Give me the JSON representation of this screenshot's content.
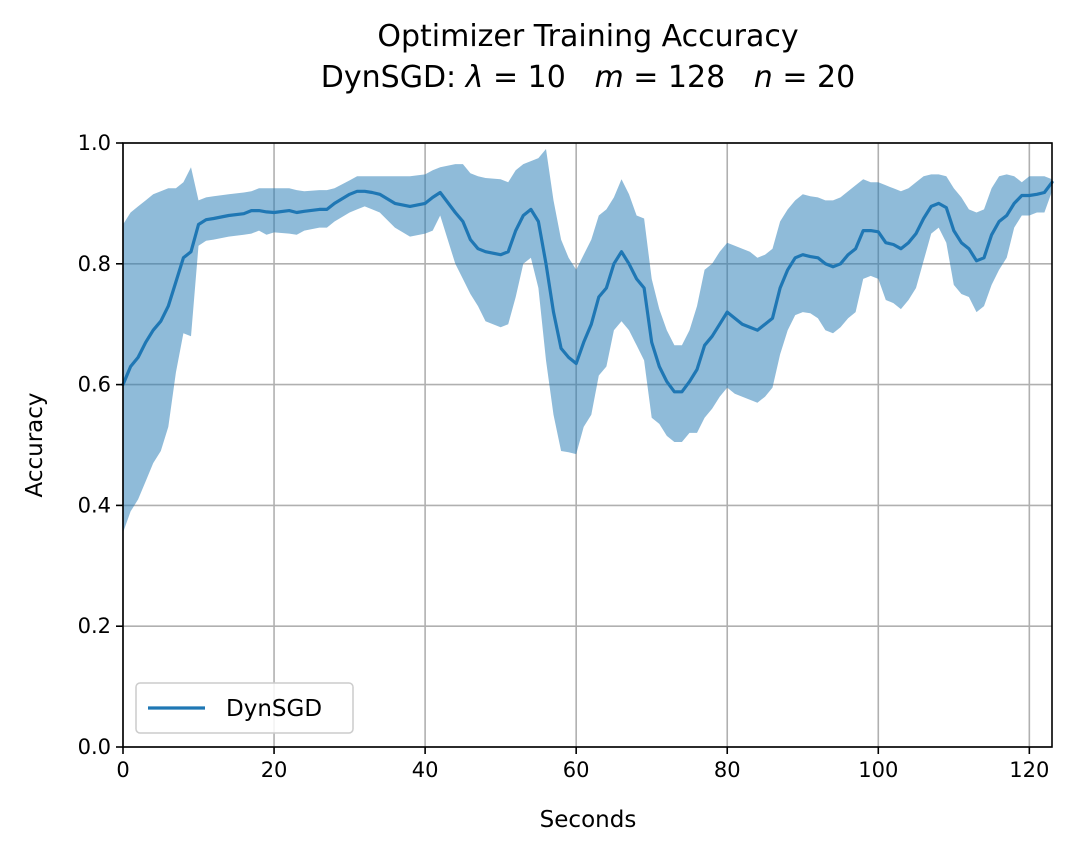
{
  "chart_data": {
    "type": "line",
    "title": "Optimizer Training Accuracy",
    "subtitle": {
      "prefix": "DynSGD: ",
      "params": [
        {
          "symbol": "λ",
          "value": " = 10"
        },
        {
          "symbol": "m",
          "value": " = 128"
        },
        {
          "symbol": "n",
          "value": " = 20"
        }
      ]
    },
    "xlabel": "Seconds",
    "ylabel": "Accuracy",
    "xlim": [
      0,
      123
    ],
    "ylim": [
      0,
      1
    ],
    "xticks": [
      0,
      20,
      40,
      60,
      80,
      100,
      120
    ],
    "xtick_labels": [
      "0",
      "20",
      "40",
      "60",
      "80",
      "100",
      "120"
    ],
    "yticks": [
      0,
      0.2,
      0.4,
      0.6,
      0.8,
      1.0
    ],
    "ytick_labels": [
      "0.0",
      "0.2",
      "0.4",
      "0.6",
      "0.8",
      "1.0"
    ],
    "grid": true,
    "legend": {
      "position": "lower-left"
    },
    "colors": {
      "line": "#1f77b4",
      "band": "#1f77b4"
    },
    "series": [
      {
        "name": "DynSGD",
        "x": [
          0,
          1,
          2,
          3,
          4,
          5,
          6,
          7,
          8,
          9,
          10,
          11,
          12,
          14,
          16,
          17,
          18,
          19,
          20,
          22,
          23,
          24,
          26,
          27,
          28,
          30,
          31,
          32,
          33,
          34,
          36,
          38,
          40,
          41,
          42,
          44,
          45,
          46,
          47,
          48,
          50,
          51,
          52,
          53,
          54,
          55,
          56,
          57,
          58,
          59,
          60,
          61,
          62,
          63,
          64,
          65,
          66,
          67,
          68,
          69,
          70,
          71,
          72,
          73,
          74,
          75,
          76,
          77,
          78,
          79,
          80,
          81,
          82,
          83,
          84,
          85,
          86,
          87,
          88,
          89,
          90,
          91,
          92,
          93,
          94,
          95,
          96,
          97,
          98,
          99,
          100,
          101,
          102,
          103,
          104,
          105,
          106,
          107,
          108,
          109,
          110,
          111,
          112,
          113,
          114,
          115,
          116,
          117,
          118,
          119,
          120,
          121,
          122,
          123
        ],
        "y": [
          0.6,
          0.63,
          0.645,
          0.67,
          0.69,
          0.705,
          0.73,
          0.77,
          0.81,
          0.82,
          0.865,
          0.873,
          0.875,
          0.88,
          0.883,
          0.888,
          0.888,
          0.886,
          0.885,
          0.888,
          0.885,
          0.887,
          0.89,
          0.89,
          0.9,
          0.915,
          0.92,
          0.92,
          0.918,
          0.915,
          0.9,
          0.895,
          0.9,
          0.91,
          0.918,
          0.885,
          0.87,
          0.84,
          0.825,
          0.82,
          0.815,
          0.82,
          0.855,
          0.88,
          0.89,
          0.87,
          0.8,
          0.72,
          0.66,
          0.645,
          0.635,
          0.67,
          0.7,
          0.745,
          0.76,
          0.8,
          0.82,
          0.8,
          0.775,
          0.76,
          0.67,
          0.63,
          0.605,
          0.588,
          0.588,
          0.605,
          0.625,
          0.665,
          0.68,
          0.7,
          0.72,
          0.71,
          0.7,
          0.695,
          0.69,
          0.7,
          0.71,
          0.76,
          0.79,
          0.81,
          0.815,
          0.812,
          0.81,
          0.8,
          0.795,
          0.8,
          0.815,
          0.825,
          0.855,
          0.855,
          0.853,
          0.835,
          0.832,
          0.825,
          0.835,
          0.85,
          0.875,
          0.895,
          0.9,
          0.893,
          0.855,
          0.835,
          0.825,
          0.805,
          0.81,
          0.848,
          0.87,
          0.88,
          0.9,
          0.913,
          0.913,
          0.915,
          0.918,
          0.935
        ],
        "lower": [
          0.355,
          0.39,
          0.41,
          0.44,
          0.47,
          0.49,
          0.53,
          0.62,
          0.685,
          0.68,
          0.83,
          0.838,
          0.84,
          0.845,
          0.848,
          0.85,
          0.855,
          0.848,
          0.852,
          0.85,
          0.848,
          0.855,
          0.86,
          0.86,
          0.87,
          0.885,
          0.89,
          0.895,
          0.89,
          0.885,
          0.86,
          0.845,
          0.85,
          0.855,
          0.88,
          0.8,
          0.775,
          0.75,
          0.73,
          0.705,
          0.695,
          0.7,
          0.745,
          0.8,
          0.81,
          0.76,
          0.64,
          0.55,
          0.49,
          0.488,
          0.485,
          0.53,
          0.55,
          0.615,
          0.63,
          0.69,
          0.705,
          0.69,
          0.665,
          0.64,
          0.545,
          0.535,
          0.515,
          0.505,
          0.505,
          0.52,
          0.52,
          0.545,
          0.56,
          0.58,
          0.595,
          0.585,
          0.58,
          0.575,
          0.57,
          0.58,
          0.595,
          0.65,
          0.69,
          0.715,
          0.72,
          0.718,
          0.71,
          0.69,
          0.685,
          0.695,
          0.71,
          0.72,
          0.775,
          0.78,
          0.775,
          0.74,
          0.735,
          0.725,
          0.74,
          0.76,
          0.805,
          0.85,
          0.86,
          0.835,
          0.765,
          0.75,
          0.745,
          0.72,
          0.73,
          0.765,
          0.79,
          0.81,
          0.86,
          0.88,
          0.88,
          0.885,
          0.885,
          0.92
        ],
        "upper": [
          0.865,
          0.885,
          0.895,
          0.905,
          0.915,
          0.92,
          0.925,
          0.925,
          0.935,
          0.96,
          0.905,
          0.91,
          0.912,
          0.915,
          0.918,
          0.92,
          0.925,
          0.925,
          0.925,
          0.925,
          0.922,
          0.92,
          0.922,
          0.922,
          0.925,
          0.938,
          0.945,
          0.945,
          0.945,
          0.945,
          0.945,
          0.945,
          0.948,
          0.955,
          0.96,
          0.965,
          0.965,
          0.95,
          0.945,
          0.942,
          0.94,
          0.935,
          0.955,
          0.965,
          0.97,
          0.975,
          0.99,
          0.905,
          0.84,
          0.81,
          0.79,
          0.815,
          0.84,
          0.88,
          0.89,
          0.91,
          0.94,
          0.915,
          0.88,
          0.875,
          0.775,
          0.725,
          0.69,
          0.665,
          0.665,
          0.69,
          0.73,
          0.79,
          0.8,
          0.82,
          0.835,
          0.83,
          0.825,
          0.82,
          0.81,
          0.815,
          0.825,
          0.87,
          0.89,
          0.905,
          0.915,
          0.912,
          0.91,
          0.905,
          0.905,
          0.91,
          0.92,
          0.93,
          0.94,
          0.935,
          0.935,
          0.93,
          0.925,
          0.92,
          0.925,
          0.935,
          0.945,
          0.948,
          0.948,
          0.945,
          0.925,
          0.91,
          0.89,
          0.885,
          0.89,
          0.925,
          0.945,
          0.948,
          0.945,
          0.935,
          0.945,
          0.945,
          0.945,
          0.94
        ]
      }
    ]
  }
}
